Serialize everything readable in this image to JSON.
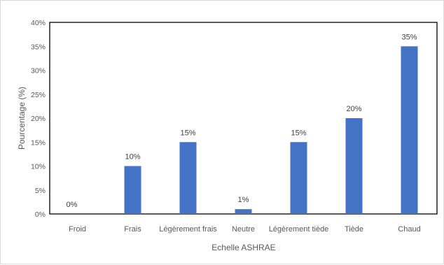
{
  "chart_data": {
    "type": "bar",
    "title": "",
    "xlabel": "Echelle ASHRAE",
    "ylabel": "Pourcentage (%)",
    "categories": [
      "Froid",
      "Frais",
      "Légèrement frais",
      "Neutre",
      "Légèrement tiède",
      "Tiède",
      "Chaud"
    ],
    "values": [
      0,
      10,
      15,
      1,
      15,
      20,
      35
    ],
    "data_labels": [
      "0%",
      "10%",
      "15%",
      "1%",
      "15%",
      "20%",
      "35%"
    ],
    "ylim": [
      0,
      40
    ],
    "yticks": [
      0,
      5,
      10,
      15,
      20,
      25,
      30,
      35,
      40
    ],
    "ytick_labels": [
      "0%",
      "5%",
      "10%",
      "15%",
      "20%",
      "25%",
      "30%",
      "35%",
      "40%"
    ],
    "bar_color": "#4472c4",
    "grid": false,
    "legend": "none"
  }
}
